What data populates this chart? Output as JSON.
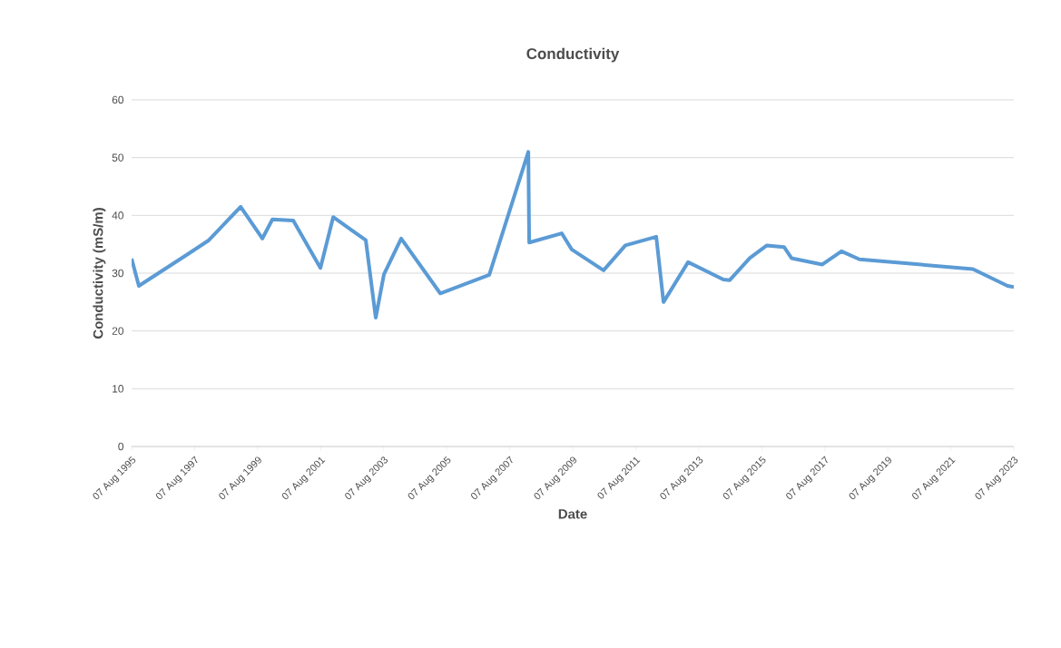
{
  "chart_data": {
    "type": "line",
    "title": "Conductivity",
    "xlabel": "Date",
    "ylabel": "Conductivity (mS/m)",
    "x": [
      "1995-08-07",
      "1995-10-30",
      "1997-05-20",
      "1998-01-18",
      "1999-01-22",
      "1999-10-01",
      "2000-01-25",
      "2000-09-23",
      "2001-08-04",
      "2001-12-30",
      "2003-01-12",
      "2003-05-07",
      "2003-08-10",
      "2004-02-26",
      "2005-05-24",
      "2006-12-13",
      "2008-03-10",
      "2008-03-20",
      "2009-04-01",
      "2009-07-26",
      "2010-07-30",
      "2011-04-09",
      "2012-04-01",
      "2012-06-24",
      "2013-04-05",
      "2014-05-19",
      "2014-08-01",
      "2015-03-21",
      "2015-10-05",
      "2016-04-23",
      "2016-07-17",
      "2017-07-09",
      "2018-02-16",
      "2018-09-13",
      "2022-04-20",
      "2023-05-26",
      "2023-08-07"
    ],
    "series": [
      {
        "color": "#5b9bd5",
        "values": [
          32.5,
          27.8,
          33.3,
          35.7,
          41.5,
          36.0,
          39.3,
          39.1,
          30.9,
          39.7,
          35.7,
          22.3,
          29.8,
          36.0,
          26.5,
          29.7,
          51.0,
          35.3,
          36.9,
          34.1,
          30.5,
          34.8,
          36.3,
          25.0,
          31.9,
          28.9,
          28.8,
          32.6,
          34.8,
          34.5,
          32.6,
          31.5,
          33.8,
          32.4,
          30.7,
          27.8,
          27.6
        ]
      }
    ],
    "xlim": [
      "1995-08-07",
      "2023-08-07"
    ],
    "xticks": [
      {
        "value": "1995-08-07",
        "label": "07 Aug 1995"
      },
      {
        "value": "1997-08-07",
        "label": "07 Aug 1997"
      },
      {
        "value": "1999-08-07",
        "label": "07 Aug 1999"
      },
      {
        "value": "2001-08-07",
        "label": "07 Aug 2001"
      },
      {
        "value": "2003-08-07",
        "label": "07 Aug 2003"
      },
      {
        "value": "2005-08-07",
        "label": "07 Aug 2005"
      },
      {
        "value": "2007-08-07",
        "label": "07 Aug 2007"
      },
      {
        "value": "2009-08-07",
        "label": "07 Aug 2009"
      },
      {
        "value": "2011-08-07",
        "label": "07 Aug 2011"
      },
      {
        "value": "2013-08-07",
        "label": "07 Aug 2013"
      },
      {
        "value": "2015-08-07",
        "label": "07 Aug 2015"
      },
      {
        "value": "2017-08-07",
        "label": "07 Aug 2017"
      },
      {
        "value": "2019-08-07",
        "label": "07 Aug 2019"
      },
      {
        "value": "2021-08-07",
        "label": "07 Aug 2021"
      },
      {
        "value": "2023-08-07",
        "label": "07 Aug 2023"
      }
    ],
    "ylim": [
      0,
      60
    ],
    "yticks": [
      0,
      10,
      20,
      30,
      40,
      50,
      60
    ],
    "grid": "y",
    "marker": "none",
    "line_style": "solid"
  }
}
